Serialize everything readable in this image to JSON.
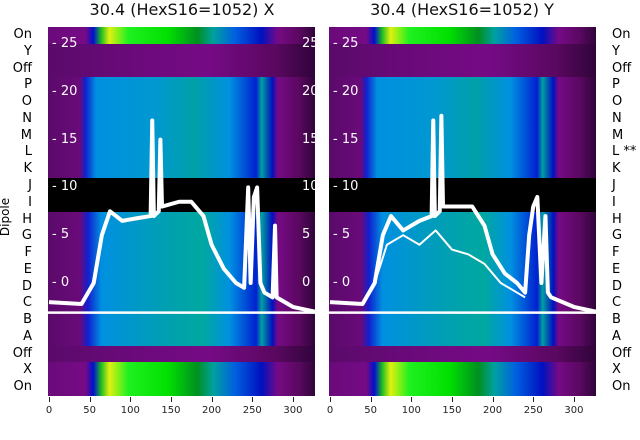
{
  "chart_data": {
    "type": "heatmap",
    "ylabel": "Dipole",
    "xticks": [
      0,
      50,
      100,
      150,
      200,
      250,
      300
    ],
    "xlim": [
      0,
      327
    ],
    "yticks": [
      0,
      5,
      10,
      15,
      20,
      25
    ],
    "rows_left": [
      "On",
      "Y",
      "Off",
      "P",
      "O",
      "N",
      "M",
      "L",
      "K",
      "J",
      "I",
      "H",
      "G",
      "F",
      "E",
      "D",
      "C",
      "B",
      "A",
      "Off",
      "X",
      "On"
    ],
    "rows_right": [
      "On",
      "Y",
      "Off",
      "P",
      "O",
      "N",
      "M",
      "L **",
      "K",
      "J",
      "I",
      "H",
      "G",
      "F",
      "E",
      "D",
      "C",
      "B",
      "A",
      "Off",
      "X",
      "On"
    ],
    "row_kinds": [
      "green",
      "purple",
      "purple",
      "blue",
      "blue",
      "blue",
      "blue",
      "blue",
      "blue",
      "black",
      "black",
      "cyan",
      "cyan",
      "cyan",
      "cyan",
      "cyan",
      "cyan",
      "cyan",
      "cyan",
      "purple",
      "green",
      "green"
    ],
    "panels": [
      {
        "title": "30.4 (HexS16=1052) X",
        "series": [
          {
            "name": "trace",
            "x": [
              0,
              40,
              55,
              65,
              75,
              90,
              110,
              125,
              127,
              129,
              135,
              137,
              139,
              160,
              175,
              190,
              200,
              215,
              230,
              240,
              245,
              248,
              252,
              256,
              260,
              265,
              275,
              278,
              280,
              300,
              327
            ],
            "y": [
              -2,
              -2.2,
              0,
              5,
              7.5,
              6.5,
              6.8,
              7,
              17,
              7,
              7.5,
              15,
              8,
              8.5,
              8.5,
              7,
              4,
              1.5,
              0,
              -0.5,
              10,
              0,
              9,
              10,
              0,
              -1,
              -1.5,
              6,
              -1.5,
              -2.5,
              -3
            ]
          }
        ]
      },
      {
        "title": "30.4 (HexS16=1052) Y",
        "series": [
          {
            "name": "trace-upper",
            "x": [
              0,
              40,
              55,
              65,
              75,
              90,
              110,
              125,
              127,
              129,
              135,
              137,
              139,
              160,
              175,
              190,
              200,
              215,
              230,
              240,
              245,
              250,
              255,
              260,
              265,
              268,
              272,
              300,
              327
            ],
            "y": [
              -2,
              -2.2,
              0,
              5,
              7,
              5.5,
              6.5,
              7,
              17,
              7,
              7.5,
              17.5,
              8,
              8,
              8,
              6,
              3,
              1,
              0,
              -1,
              5,
              8,
              9,
              0,
              7,
              -1,
              -1.5,
              -2.5,
              -3
            ]
          },
          {
            "name": "trace-lower",
            "x": [
              55,
              70,
              90,
              110,
              130,
              150,
              170,
              190,
              200,
              210,
              220,
              230,
              240
            ],
            "y": [
              0,
              4,
              5,
              4,
              5.5,
              3.5,
              3,
              2,
              1,
              0,
              -0.5,
              -1,
              -1.5
            ]
          }
        ]
      }
    ],
    "hline_y": -3,
    "colors": {
      "purple": "#6a0a7a",
      "cyan": "#00a0b0",
      "blue": "#0080e0",
      "green": "#20e020",
      "black": "#000000"
    }
  }
}
